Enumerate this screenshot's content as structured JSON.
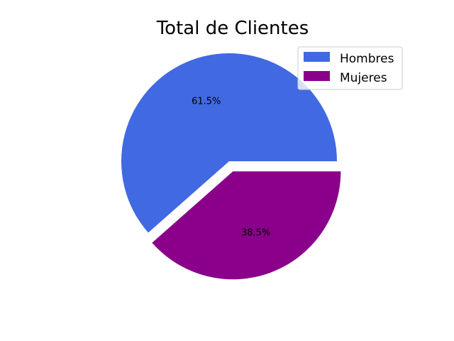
{
  "chart_data": {
    "type": "pie",
    "title": "Total de Clientes",
    "categories": [
      "Hombres",
      "Mujeres"
    ],
    "values": [
      61.5,
      38.5
    ],
    "labels": [
      "61.5%",
      "38.5%"
    ],
    "colors": [
      "#4169e1",
      "#8b008b"
    ],
    "explode": [
      0,
      0.1
    ],
    "start_angle_deg": 0,
    "counterclockwise": true,
    "legend": {
      "position": "top-right",
      "entries": [
        "Hombres",
        "Mujeres"
      ]
    }
  }
}
